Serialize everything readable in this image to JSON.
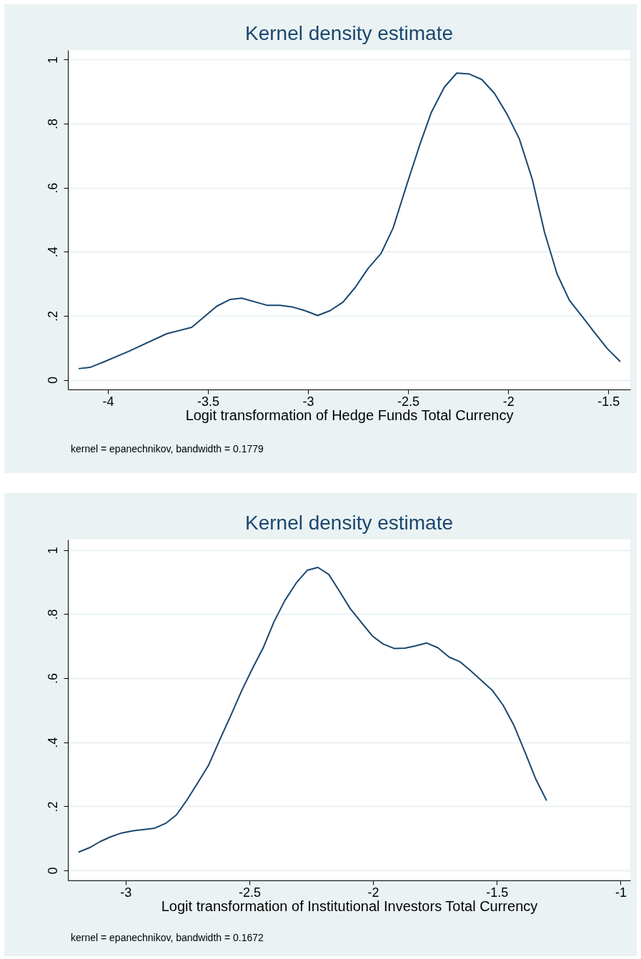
{
  "chart_data": [
    {
      "type": "line",
      "title": "Kernel density estimate",
      "xlabel": "Logit transformation of Hedge Funds Total Currency",
      "annotations": [
        "kernel = epanechnikov, bandwidth = 0.1779"
      ],
      "grid": "y",
      "marker": "none",
      "line_style": "solid",
      "xlim": [
        -4.2,
        -1.39
      ],
      "xticks": [
        -4,
        -3.5,
        -3,
        -2.5,
        -2,
        -1.5
      ],
      "ylim": [
        -0.03,
        1.03
      ],
      "yticks": [
        {
          "value": 0,
          "label": "0"
        },
        {
          "value": 0.2,
          "label": ".2"
        },
        {
          "value": 0.4,
          "label": ".4"
        },
        {
          "value": 0.6,
          "label": ".6"
        },
        {
          "value": 0.8,
          "label": ".8"
        },
        {
          "value": 1,
          "label": "1"
        }
      ],
      "x": [
        -4.146,
        -4.089,
        -4.021,
        -3.896,
        -3.706,
        -3.581,
        -3.456,
        -3.39,
        -3.331,
        -3.206,
        -3.14,
        -3.075,
        -3.015,
        -2.952,
        -2.89,
        -2.825,
        -2.765,
        -2.7,
        -2.635,
        -2.575,
        -2.51,
        -2.444,
        -2.385,
        -2.319,
        -2.257,
        -2.194,
        -2.132,
        -2.069,
        -2.006,
        -1.944,
        -1.879,
        -1.819,
        -1.756,
        -1.694,
        -1.629,
        -1.565,
        -1.504,
        -1.44
      ],
      "series": [
        {
          "color": "#1a476f",
          "values": [
            0.035,
            0.039,
            0.056,
            0.089,
            0.144,
            0.164,
            0.23,
            0.251,
            0.255,
            0.233,
            0.233,
            0.227,
            0.216,
            0.201,
            0.216,
            0.243,
            0.288,
            0.348,
            0.395,
            0.474,
            0.603,
            0.73,
            0.834,
            0.914,
            0.958,
            0.955,
            0.938,
            0.895,
            0.83,
            0.752,
            0.625,
            0.462,
            0.331,
            0.248,
            0.197,
            0.145,
            0.097,
            0.057
          ]
        }
      ]
    },
    {
      "type": "line",
      "title": "Kernel density estimate",
      "xlabel": "Logit transformation of Institutional Investors Total Currency",
      "annotations": [
        "kernel = epanechnikov, bandwidth = 0.1672"
      ],
      "grid": "y",
      "marker": "none",
      "line_style": "solid",
      "xlim": [
        -3.233,
        -0.961
      ],
      "xticks": [
        -3,
        -2.5,
        -2,
        -1.5,
        -1
      ],
      "ylim": [
        -0.031,
        1.033
      ],
      "yticks": [
        {
          "value": 0,
          "label": "0"
        },
        {
          "value": 0.2,
          "label": ".2"
        },
        {
          "value": 0.4,
          "label": ".4"
        },
        {
          "value": 0.6,
          "label": ".6"
        },
        {
          "value": 0.8,
          "label": ".8"
        },
        {
          "value": 1,
          "label": "1"
        }
      ],
      "x": [
        -3.19,
        -3.146,
        -3.103,
        -3.06,
        -3.016,
        -2.968,
        -2.882,
        -2.838,
        -2.795,
        -2.752,
        -2.708,
        -2.665,
        -2.617,
        -2.574,
        -2.531,
        -2.487,
        -2.444,
        -2.401,
        -2.357,
        -2.309,
        -2.266,
        -2.223,
        -2.179,
        -2.136,
        -2.093,
        -2.046,
        -2.003,
        -1.96,
        -1.915,
        -1.871,
        -1.828,
        -1.783,
        -1.738,
        -1.693,
        -1.65,
        -1.607,
        -1.564,
        -1.517,
        -1.475,
        -1.431,
        -1.385,
        -1.342,
        -1.299
      ],
      "series": [
        {
          "color": "#1a476f",
          "values": [
            0.057,
            0.071,
            0.09,
            0.105,
            0.117,
            0.124,
            0.132,
            0.147,
            0.173,
            0.22,
            0.274,
            0.328,
            0.412,
            0.485,
            0.561,
            0.631,
            0.695,
            0.775,
            0.842,
            0.899,
            0.937,
            0.946,
            0.924,
            0.872,
            0.818,
            0.773,
            0.732,
            0.707,
            0.693,
            0.694,
            0.701,
            0.71,
            0.695,
            0.666,
            0.652,
            0.624,
            0.594,
            0.561,
            0.516,
            0.453,
            0.367,
            0.284,
            0.218
          ]
        }
      ]
    }
  ]
}
